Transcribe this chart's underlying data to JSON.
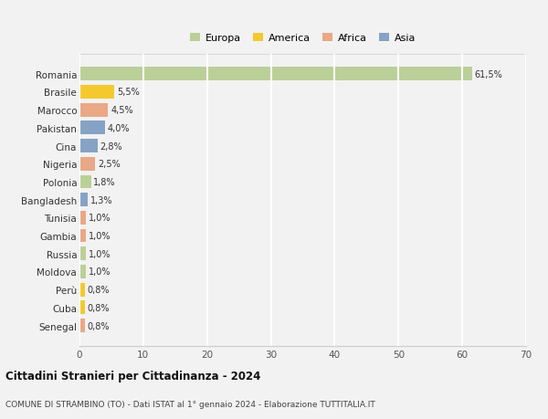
{
  "countries": [
    "Romania",
    "Brasile",
    "Marocco",
    "Pakistan",
    "Cina",
    "Nigeria",
    "Polonia",
    "Bangladesh",
    "Tunisia",
    "Gambia",
    "Russia",
    "Moldova",
    "Perù",
    "Cuba",
    "Senegal"
  ],
  "values": [
    61.5,
    5.5,
    4.5,
    4.0,
    2.8,
    2.5,
    1.8,
    1.3,
    1.0,
    1.0,
    1.0,
    1.0,
    0.8,
    0.8,
    0.8
  ],
  "labels": [
    "61,5%",
    "5,5%",
    "4,5%",
    "4,0%",
    "2,8%",
    "2,5%",
    "1,8%",
    "1,3%",
    "1,0%",
    "1,0%",
    "1,0%",
    "1,0%",
    "0,8%",
    "0,8%",
    "0,8%"
  ],
  "continents": [
    "Europa",
    "America",
    "Africa",
    "Asia",
    "Asia",
    "Africa",
    "Europa",
    "Asia",
    "Africa",
    "Africa",
    "Europa",
    "Europa",
    "America",
    "America",
    "Africa"
  ],
  "continent_colors": {
    "Europa": "#b5cc8e",
    "America": "#f5c518",
    "Africa": "#e8a07a",
    "Asia": "#7a9abf"
  },
  "legend_order": [
    "Europa",
    "America",
    "Africa",
    "Asia"
  ],
  "legend_colors": [
    "#b5cc8e",
    "#f5c518",
    "#e8a07a",
    "#7a9abf"
  ],
  "xlim": [
    0,
    70
  ],
  "xticks": [
    0,
    10,
    20,
    30,
    40,
    50,
    60,
    70
  ],
  "title": "Cittadini Stranieri per Cittadinanza - 2024",
  "subtitle": "COMUNE DI STRAMBINO (TO) - Dati ISTAT al 1° gennaio 2024 - Elaborazione TUTTITALIA.IT",
  "background_color": "#f2f2f2",
  "grid_color": "#ffffff",
  "bar_height": 0.75
}
